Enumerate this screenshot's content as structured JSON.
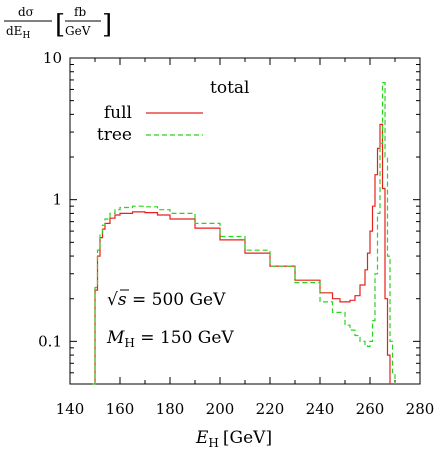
{
  "chart_data": {
    "type": "line",
    "title": "total",
    "ylabel_parts": {
      "num": "dσ",
      "den_prefix": "dE",
      "den_sub": "H",
      "unit_num": "fb",
      "unit_den": "GeV"
    },
    "xlabel_parts": {
      "symbol": "E",
      "sub": "H",
      "unit": "[GeV]"
    },
    "xlim": [
      140,
      280
    ],
    "ylim": [
      0.05,
      10
    ],
    "yscale": "log",
    "x_ticks": [
      140,
      160,
      180,
      200,
      220,
      240,
      260,
      280
    ],
    "y_tick_labels": [
      {
        "value": 10,
        "label": "10"
      },
      {
        "value": 1,
        "label": "1"
      },
      {
        "value": 0.1,
        "label": "0.1"
      }
    ],
    "legend_position": "top-left",
    "annotations": {
      "line1": {
        "sqrt": "√",
        "s": "s",
        "rest": " = 500 GeV"
      },
      "line2": {
        "M": "M",
        "sub": "H",
        "rest": " = 150 GeV"
      }
    },
    "series": [
      {
        "name": "full",
        "color": "#e8201c",
        "style": "solid",
        "x": [
          149,
          150,
          151,
          152,
          153,
          154,
          156,
          158,
          160,
          165,
          170,
          175,
          180,
          190,
          200,
          210,
          220,
          230,
          240,
          245,
          248,
          250,
          252,
          254,
          256,
          258,
          259,
          260,
          261,
          262,
          263,
          264,
          265,
          266,
          267,
          268
        ],
        "y": [
          0.05,
          0.23,
          0.4,
          0.54,
          0.62,
          0.68,
          0.74,
          0.78,
          0.8,
          0.82,
          0.81,
          0.78,
          0.73,
          0.63,
          0.52,
          0.42,
          0.34,
          0.27,
          0.22,
          0.2,
          0.19,
          0.19,
          0.195,
          0.21,
          0.25,
          0.32,
          0.42,
          0.6,
          0.9,
          1.5,
          2.3,
          3.4,
          1.2,
          0.2,
          0.08,
          0.05
        ]
      },
      {
        "name": "tree",
        "color": "#29d41e",
        "style": "dashed",
        "x": [
          149,
          150,
          151,
          152,
          153,
          154,
          156,
          158,
          160,
          165,
          170,
          175,
          180,
          190,
          200,
          210,
          220,
          230,
          240,
          245,
          250,
          252,
          254,
          256,
          258,
          259,
          260,
          261,
          262,
          263,
          264,
          265,
          266,
          267,
          268,
          269,
          270
        ],
        "y": [
          0.05,
          0.24,
          0.44,
          0.58,
          0.66,
          0.73,
          0.8,
          0.85,
          0.88,
          0.9,
          0.89,
          0.85,
          0.8,
          0.68,
          0.55,
          0.44,
          0.34,
          0.26,
          0.19,
          0.16,
          0.13,
          0.12,
          0.11,
          0.1,
          0.095,
          0.092,
          0.1,
          0.14,
          0.3,
          0.8,
          2.5,
          6.7,
          2.0,
          0.4,
          0.1,
          0.06,
          0.05
        ]
      }
    ]
  }
}
